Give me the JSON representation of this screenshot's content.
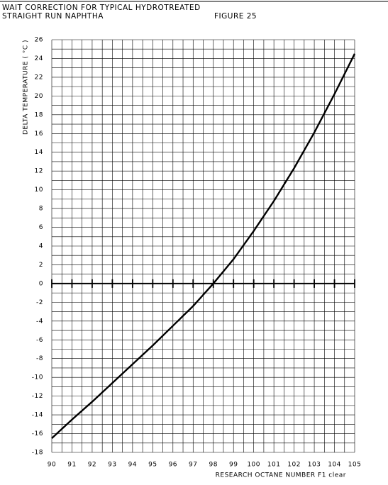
{
  "chart_data": {
    "type": "line",
    "title": "WAIT CORRECTION FOR TYPICAL HYDROTREATED",
    "subtitle": "STRAIGHT RUN NAPHTHA",
    "figure_label": "FIGURE 25",
    "x_label": "RESEARCH OCTANE NUMBER F1 clear",
    "y_label": "DELTA TEMPERATURE ( °C )",
    "x": [
      90,
      91,
      92,
      93,
      94,
      95,
      96,
      97,
      98,
      99,
      100,
      101,
      102,
      103,
      104,
      105
    ],
    "values": [
      -16.5,
      -14.5,
      -12.6,
      -10.6,
      -8.6,
      -6.6,
      -4.5,
      -2.4,
      0,
      2.6,
      5.6,
      8.8,
      12.3,
      16.1,
      20.2,
      24.5
    ],
    "color": "#000000",
    "xlim": [
      90,
      105
    ],
    "ylim": [
      -18,
      26
    ],
    "xticks": [
      90,
      91,
      92,
      93,
      94,
      95,
      96,
      97,
      98,
      99,
      100,
      101,
      102,
      103,
      104,
      105
    ],
    "yticks": [
      -18,
      -16,
      -14,
      -12,
      -10,
      -8,
      -6,
      -4,
      -2,
      0,
      2,
      4,
      6,
      8,
      10,
      12,
      14,
      16,
      18,
      20,
      22,
      24,
      26
    ],
    "grid": true
  }
}
